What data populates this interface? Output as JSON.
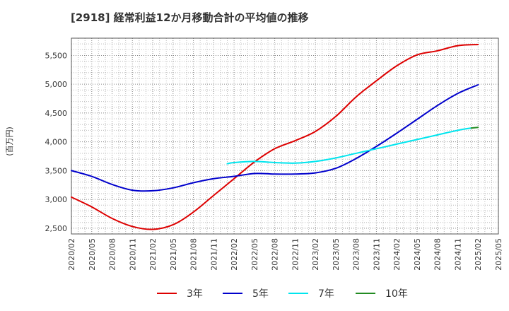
{
  "chart_data": {
    "type": "line",
    "title": "[2918]  経常利益12か月移動合計の平均値の推移",
    "ylabel": "(百万円)",
    "ylim": [
      2400,
      5800
    ],
    "yticks": [
      2500,
      3000,
      3500,
      4000,
      4500,
      5000,
      5500
    ],
    "ytick_labels": [
      "2,500",
      "3,000",
      "3,500",
      "4,000",
      "4,500",
      "5,000",
      "5,500"
    ],
    "xtick_labels": [
      "2020/02",
      "2020/05",
      "2020/08",
      "2020/11",
      "2021/02",
      "2021/05",
      "2021/08",
      "2021/11",
      "2022/02",
      "2022/05",
      "2022/08",
      "2022/11",
      "2023/02",
      "2023/05",
      "2023/08",
      "2023/11",
      "2024/02",
      "2024/05",
      "2024/08",
      "2024/11",
      "2025/02",
      "2025/05"
    ],
    "grid": true,
    "legend_position": "bottom",
    "series": [
      {
        "name": "3年",
        "color": "#dd0000",
        "x": [
          "2020/02",
          "2020/05",
          "2020/08",
          "2020/11",
          "2021/02",
          "2021/05",
          "2021/08",
          "2021/11",
          "2022/02",
          "2022/05",
          "2022/08",
          "2022/11",
          "2023/02",
          "2023/05",
          "2023/08",
          "2023/11",
          "2024/02",
          "2024/05",
          "2024/08",
          "2024/11",
          "2025/02"
        ],
        "values": [
          3040,
          2870,
          2670,
          2530,
          2480,
          2560,
          2780,
          3070,
          3360,
          3650,
          3880,
          4020,
          4180,
          4440,
          4780,
          5060,
          5320,
          5510,
          5580,
          5670,
          5690
        ]
      },
      {
        "name": "5年",
        "color": "#0000cc",
        "x": [
          "2020/02",
          "2020/05",
          "2020/08",
          "2020/11",
          "2021/02",
          "2021/05",
          "2021/08",
          "2021/11",
          "2022/02",
          "2022/05",
          "2022/08",
          "2022/11",
          "2023/02",
          "2023/05",
          "2023/08",
          "2023/11",
          "2024/02",
          "2024/05",
          "2024/08",
          "2024/11",
          "2025/02"
        ],
        "values": [
          3500,
          3400,
          3260,
          3160,
          3150,
          3200,
          3290,
          3360,
          3400,
          3450,
          3440,
          3440,
          3460,
          3540,
          3710,
          3920,
          4150,
          4390,
          4630,
          4840,
          4990
        ]
      },
      {
        "name": "7年",
        "color": "#00e5ee",
        "x": [
          "2022/01",
          "2022/02",
          "2022/05",
          "2022/08",
          "2022/11",
          "2023/02",
          "2023/05",
          "2023/08",
          "2023/11",
          "2024/02",
          "2024/05",
          "2024/08",
          "2024/11",
          "2025/01"
        ],
        "values": [
          3620,
          3640,
          3660,
          3640,
          3630,
          3660,
          3720,
          3800,
          3880,
          3960,
          4040,
          4120,
          4200,
          4240
        ]
      },
      {
        "name": "10年",
        "color": "#228b22",
        "x": [
          "2025/01",
          "2025/02"
        ],
        "values": [
          4240,
          4250
        ]
      }
    ]
  }
}
